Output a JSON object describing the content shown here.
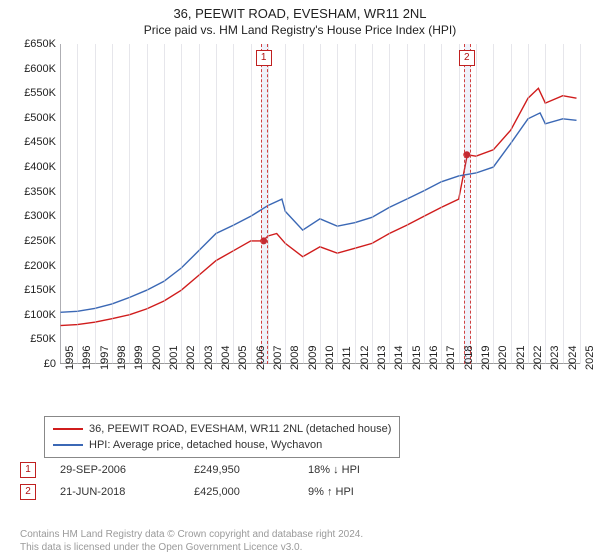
{
  "title": "36, PEEWIT ROAD, EVESHAM, WR11 2NL",
  "subtitle": "Price paid vs. HM Land Registry's House Price Index (HPI)",
  "chart": {
    "type": "line",
    "background_color": "#ffffff",
    "grid_color": "#d6d6e0",
    "xlim": [
      1995,
      2025
    ],
    "ylim": [
      0,
      650000
    ],
    "ytick_step": 50000,
    "yticks": [
      "£0",
      "£50K",
      "£100K",
      "£150K",
      "£200K",
      "£250K",
      "£300K",
      "£350K",
      "£400K",
      "£450K",
      "£500K",
      "£550K",
      "£600K",
      "£650K"
    ],
    "xticks": [
      1995,
      1996,
      1997,
      1998,
      1999,
      2000,
      2001,
      2002,
      2003,
      2004,
      2005,
      2006,
      2007,
      2008,
      2009,
      2010,
      2011,
      2012,
      2013,
      2014,
      2015,
      2016,
      2017,
      2018,
      2019,
      2020,
      2021,
      2022,
      2023,
      2024,
      2025
    ],
    "axis_fontsize": 11,
    "title_fontsize": 13,
    "line_width": 1.4,
    "series": [
      {
        "name": "36, PEEWIT ROAD, EVESHAM, WR11 2NL (detached house)",
        "color": "#d01c1c",
        "data": [
          [
            1995,
            78000
          ],
          [
            1996,
            80000
          ],
          [
            1997,
            85000
          ],
          [
            1998,
            92000
          ],
          [
            1999,
            100000
          ],
          [
            2000,
            112000
          ],
          [
            2001,
            128000
          ],
          [
            2002,
            150000
          ],
          [
            2003,
            180000
          ],
          [
            2004,
            210000
          ],
          [
            2005,
            230000
          ],
          [
            2006,
            250000
          ],
          [
            2006.7,
            250000
          ],
          [
            2007,
            260000
          ],
          [
            2007.5,
            265000
          ],
          [
            2008,
            245000
          ],
          [
            2009,
            218000
          ],
          [
            2010,
            238000
          ],
          [
            2011,
            225000
          ],
          [
            2012,
            235000
          ],
          [
            2013,
            245000
          ],
          [
            2014,
            265000
          ],
          [
            2015,
            282000
          ],
          [
            2016,
            300000
          ],
          [
            2017,
            318000
          ],
          [
            2018,
            335000
          ],
          [
            2018.5,
            425000
          ],
          [
            2019,
            422000
          ],
          [
            2020,
            435000
          ],
          [
            2021,
            475000
          ],
          [
            2022,
            540000
          ],
          [
            2022.6,
            560000
          ],
          [
            2023,
            530000
          ],
          [
            2024,
            545000
          ],
          [
            2024.8,
            540000
          ]
        ]
      },
      {
        "name": "HPI: Average price, detached house, Wychavon",
        "color": "#3b68b5",
        "data": [
          [
            1995,
            105000
          ],
          [
            1996,
            107000
          ],
          [
            1997,
            113000
          ],
          [
            1998,
            122000
          ],
          [
            1999,
            135000
          ],
          [
            2000,
            150000
          ],
          [
            2001,
            168000
          ],
          [
            2002,
            195000
          ],
          [
            2003,
            230000
          ],
          [
            2004,
            265000
          ],
          [
            2005,
            282000
          ],
          [
            2006,
            300000
          ],
          [
            2007,
            322000
          ],
          [
            2007.8,
            335000
          ],
          [
            2008,
            310000
          ],
          [
            2009,
            272000
          ],
          [
            2010,
            295000
          ],
          [
            2011,
            280000
          ],
          [
            2012,
            287000
          ],
          [
            2013,
            298000
          ],
          [
            2014,
            318000
          ],
          [
            2015,
            335000
          ],
          [
            2016,
            352000
          ],
          [
            2017,
            370000
          ],
          [
            2018,
            382000
          ],
          [
            2019,
            388000
          ],
          [
            2020,
            400000
          ],
          [
            2021,
            448000
          ],
          [
            2022,
            498000
          ],
          [
            2022.7,
            510000
          ],
          [
            2023,
            488000
          ],
          [
            2024,
            498000
          ],
          [
            2024.8,
            495000
          ]
        ]
      }
    ],
    "sale_markers": [
      {
        "n": "1",
        "x": 2006.75,
        "band_width_years": 0.3,
        "dot_y": 250000,
        "dot_color": "#d01c1c"
      },
      {
        "n": "2",
        "x": 2018.47,
        "band_width_years": 0.3,
        "dot_y": 425000,
        "dot_color": "#d01c1c"
      }
    ],
    "marker_border_color": "#d04040",
    "marker_fill_color": "rgba(120,150,210,0.12)"
  },
  "legend": {
    "rows": [
      {
        "color": "#d01c1c",
        "label": "36, PEEWIT ROAD, EVESHAM, WR11 2NL (detached house)"
      },
      {
        "color": "#3b68b5",
        "label": "HPI: Average price, detached house, Wychavon"
      }
    ],
    "border_color": "#888888",
    "fontsize": 11
  },
  "sales": [
    {
      "n": "1",
      "date": "29-SEP-2006",
      "price": "£249,950",
      "delta": "18% ↓ HPI"
    },
    {
      "n": "2",
      "date": "21-JUN-2018",
      "price": "£425,000",
      "delta": "9% ↑ HPI"
    }
  ],
  "credit_line1": "Contains HM Land Registry data © Crown copyright and database right 2024.",
  "credit_line2": "This data is licensed under the Open Government Licence v3.0.",
  "credit_color": "#9a9a9a"
}
